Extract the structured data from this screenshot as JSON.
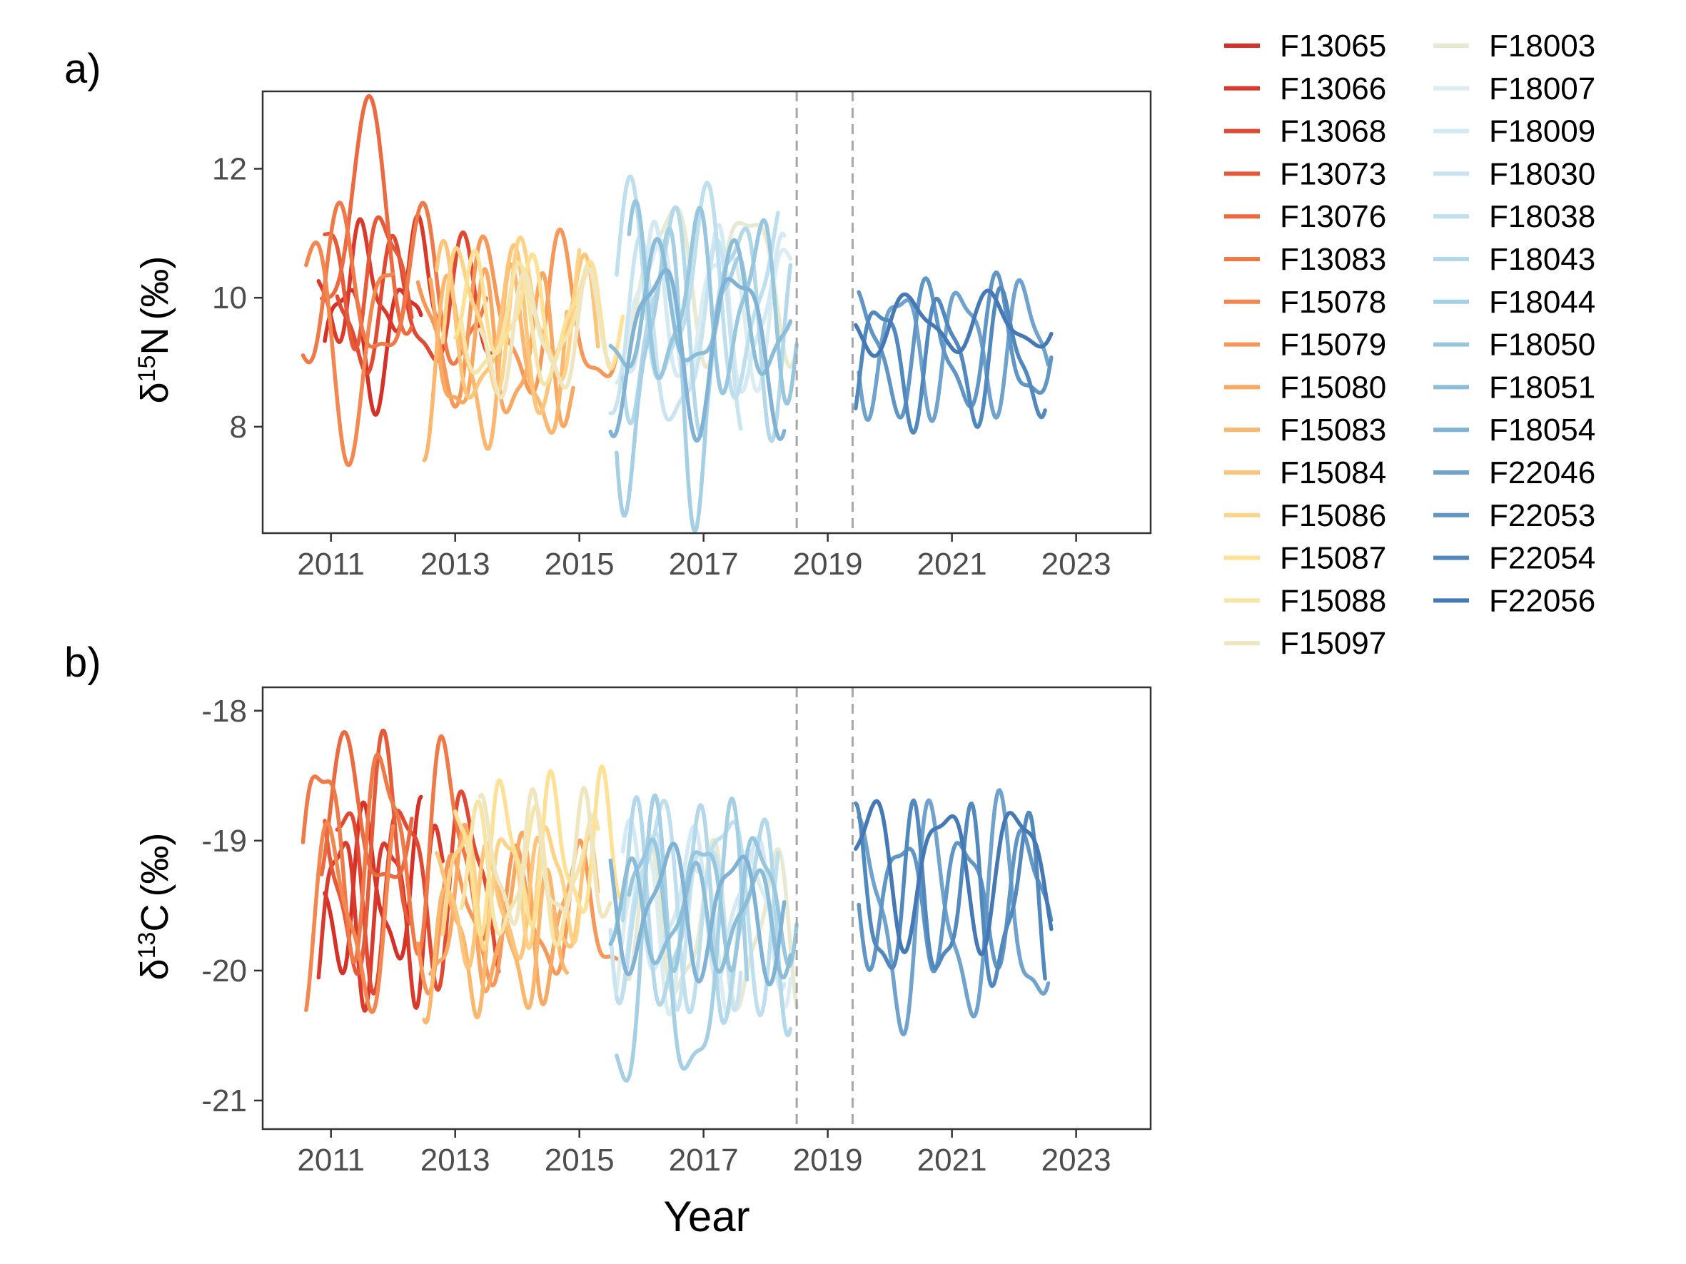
{
  "chart_data": [
    {
      "panel_label": "a)",
      "type": "line",
      "ylabel": {
        "symbol": "δ",
        "superscript": "15",
        "element": "N",
        "unit": "(‰)"
      },
      "xlabel": "",
      "xlim": [
        2009.9,
        2024.2
      ],
      "ylim": [
        6.35,
        13.2
      ],
      "xticks": [
        2011,
        2013,
        2015,
        2017,
        2019,
        2021,
        2023
      ],
      "yticks": [
        8,
        10,
        12
      ],
      "vlines": [
        2018.5,
        2019.4
      ],
      "grid": false,
      "legend_position": "right"
    },
    {
      "panel_label": "b)",
      "type": "line",
      "ylabel": {
        "symbol": "δ",
        "superscript": "13",
        "element": "C",
        "unit": "(‰)"
      },
      "xlabel": "Year",
      "xlim": [
        2009.9,
        2024.2
      ],
      "ylim": [
        -21.22,
        -17.82
      ],
      "xticks": [
        2011,
        2013,
        2015,
        2017,
        2019,
        2021,
        2023
      ],
      "yticks": [
        -21,
        -20,
        -19,
        -18
      ],
      "vlines": [
        2018.5,
        2019.4
      ],
      "grid": false,
      "legend_position": "right"
    }
  ],
  "series": [
    {
      "name": "F13065",
      "color": "#d73027",
      "start": 2010.9,
      "end": 2012.45,
      "n_base": 9.4,
      "n_amp": 0.9,
      "n_per": 1.0,
      "n_phase": 0.2,
      "c_base": -19.4,
      "c_amp": 0.55,
      "c_per": 0.9,
      "c_phase": 1.1
    },
    {
      "name": "F13066",
      "color": "#da3a2b",
      "start": 2010.8,
      "end": 2012.8,
      "n_base": 10.2,
      "n_amp": 0.8,
      "n_per": 0.9,
      "n_phase": 1.5,
      "c_base": -19.5,
      "c_amp": 0.6,
      "c_per": 0.8,
      "c_phase": 2.0
    },
    {
      "name": "F13068",
      "color": "#e04a32",
      "start": 2011.1,
      "end": 2013.7,
      "n_base": 9.8,
      "n_amp": 0.9,
      "n_per": 1.1,
      "n_phase": 0.8,
      "c_base": -19.3,
      "c_amp": 0.65,
      "c_per": 1.0,
      "c_phase": 0.4
    },
    {
      "name": "F13073",
      "color": "#e65a3a",
      "start": 2010.9,
      "end": 2012.3,
      "n_base": 10.4,
      "n_amp": 0.9,
      "n_per": 1.0,
      "n_phase": 2.4,
      "c_base": -19.2,
      "c_amp": 0.8,
      "c_per": 1.1,
      "c_phase": 1.7
    },
    {
      "name": "F13076",
      "color": "#ec6a40",
      "start": 2010.85,
      "end": 2012.3,
      "n_base": 11.0,
      "n_amp": 1.6,
      "n_per": 1.6,
      "n_phase": 0.1,
      "c_base": -18.9,
      "c_amp": 0.55,
      "c_per": 1.3,
      "c_phase": 0.9
    },
    {
      "name": "F13083",
      "color": "#f07948",
      "start": 2010.55,
      "end": 2013.5,
      "n_base": 10.0,
      "n_amp": 1.1,
      "n_per": 1.3,
      "n_phase": 1.3,
      "c_base": -19.0,
      "c_amp": 0.7,
      "c_per": 1.0,
      "c_phase": 2.5
    },
    {
      "name": "F15078",
      "color": "#f4874f",
      "start": 2010.6,
      "end": 2012.0,
      "n_base": 9.4,
      "n_amp": 1.5,
      "n_per": 1.4,
      "n_phase": 0.6,
      "c_base": -19.6,
      "c_amp": 0.65,
      "c_per": 1.1,
      "c_phase": 0.3
    },
    {
      "name": "F15079",
      "color": "#f79858",
      "start": 2012.4,
      "end": 2015.6,
      "n_base": 9.6,
      "n_amp": 1.1,
      "n_per": 1.2,
      "n_phase": 2.0,
      "c_base": -19.6,
      "c_amp": 0.45,
      "c_per": 1.0,
      "c_phase": 1.4
    },
    {
      "name": "F15080",
      "color": "#f9a862",
      "start": 2012.6,
      "end": 2014.9,
      "n_base": 9.1,
      "n_amp": 1.0,
      "n_per": 0.9,
      "n_phase": 0.4,
      "c_base": -19.6,
      "c_amp": 0.55,
      "c_per": 0.9,
      "c_phase": 2.8
    },
    {
      "name": "F15083",
      "color": "#fbb76d",
      "start": 2012.5,
      "end": 2014.8,
      "n_base": 9.0,
      "n_amp": 1.2,
      "n_per": 1.0,
      "n_phase": 1.9,
      "c_base": -19.8,
      "c_amp": 0.45,
      "c_per": 0.8,
      "c_phase": 0.7
    },
    {
      "name": "F15084",
      "color": "#fdc57a",
      "start": 2012.7,
      "end": 2015.3,
      "n_base": 9.4,
      "n_amp": 1.1,
      "n_per": 1.1,
      "n_phase": 2.7,
      "c_base": -19.5,
      "c_amp": 0.4,
      "c_per": 0.8,
      "c_phase": 1.9
    },
    {
      "name": "F15086",
      "color": "#fed387",
      "start": 2012.8,
      "end": 2015.0,
      "n_base": 9.7,
      "n_amp": 1.0,
      "n_per": 1.0,
      "n_phase": 0.9,
      "c_base": -19.3,
      "c_amp": 0.4,
      "c_per": 0.7,
      "c_phase": 2.3
    },
    {
      "name": "F15087",
      "color": "#fee194",
      "start": 2013.0,
      "end": 2015.7,
      "n_base": 9.8,
      "n_amp": 0.7,
      "n_per": 0.9,
      "n_phase": 1.6,
      "c_base": -19.1,
      "c_amp": 0.5,
      "c_per": 0.8,
      "c_phase": 0.2
    },
    {
      "name": "F15088",
      "color": "#f7e4a7",
      "start": 2013.1,
      "end": 2015.3,
      "n_base": 9.5,
      "n_amp": 0.8,
      "n_per": 1.1,
      "n_phase": 2.2,
      "c_base": -19.3,
      "c_amp": 0.45,
      "c_per": 0.9,
      "c_phase": 1.2
    },
    {
      "name": "F15097",
      "color": "#efe6c0",
      "start": 2013.4,
      "end": 2015.5,
      "n_base": 9.4,
      "n_amp": 0.8,
      "n_per": 1.0,
      "n_phase": 0.5,
      "c_base": -19.2,
      "c_amp": 0.45,
      "c_per": 0.8,
      "c_phase": 2.6
    },
    {
      "name": "F18003",
      "color": "#e6ead2",
      "start": 2015.8,
      "end": 2018.5,
      "n_base": 10.4,
      "n_amp": 1.1,
      "n_per": 1.3,
      "n_phase": 1.0,
      "c_base": -19.7,
      "c_amp": 0.55,
      "c_per": 1.0,
      "c_phase": 0.8
    },
    {
      "name": "F18007",
      "color": "#dcedf2",
      "start": 2015.6,
      "end": 2018.4,
      "n_base": 9.9,
      "n_amp": 1.0,
      "n_per": 1.1,
      "n_phase": 2.1,
      "c_base": -19.6,
      "c_amp": 0.55,
      "c_per": 0.9,
      "c_phase": 1.5
    },
    {
      "name": "F18009",
      "color": "#d3e9f3",
      "start": 2015.7,
      "end": 2018.3,
      "n_base": 9.7,
      "n_amp": 1.1,
      "n_per": 1.0,
      "n_phase": 0.3,
      "c_base": -19.5,
      "c_amp": 0.5,
      "c_per": 1.0,
      "c_phase": 2.9
    },
    {
      "name": "F18030",
      "color": "#c9e4f0",
      "start": 2015.5,
      "end": 2017.6,
      "n_base": 9.2,
      "n_amp": 1.3,
      "n_per": 1.2,
      "n_phase": 1.7,
      "c_base": -19.5,
      "c_amp": 0.6,
      "c_per": 0.9,
      "c_phase": 0.6
    },
    {
      "name": "F18038",
      "color": "#bedfee",
      "start": 2015.6,
      "end": 2018.2,
      "n_base": 10.0,
      "n_amp": 1.4,
      "n_per": 1.2,
      "n_phase": 2.6,
      "c_base": -19.4,
      "c_amp": 0.7,
      "c_per": 1.1,
      "c_phase": 1.8
    },
    {
      "name": "F18043",
      "color": "#b2d8ea",
      "start": 2015.7,
      "end": 2018.4,
      "n_base": 9.8,
      "n_amp": 1.5,
      "n_per": 1.1,
      "n_phase": 0.7,
      "c_base": -19.6,
      "c_amp": 0.7,
      "c_per": 1.0,
      "c_phase": 2.2
    },
    {
      "name": "F18044",
      "color": "#a4cfe5",
      "start": 2015.6,
      "end": 2017.7,
      "n_base": 9.0,
      "n_amp": 2.0,
      "n_per": 1.1,
      "n_phase": 1.3,
      "c_base": -20.0,
      "c_amp": 1.0,
      "c_per": 1.2,
      "c_phase": 0.4
    },
    {
      "name": "F18050",
      "color": "#97c6df",
      "start": 2015.8,
      "end": 2018.5,
      "n_base": 9.9,
      "n_amp": 1.2,
      "n_per": 1.0,
      "n_phase": 2.3,
      "c_base": -19.4,
      "c_amp": 0.45,
      "c_per": 0.9,
      "c_phase": 1.0
    },
    {
      "name": "F18051",
      "color": "#8bbdd9",
      "start": 2015.5,
      "end": 2018.4,
      "n_base": 9.7,
      "n_amp": 0.9,
      "n_per": 1.2,
      "n_phase": 0.2,
      "c_base": -19.6,
      "c_amp": 0.35,
      "c_per": 1.0,
      "c_phase": 2.7
    },
    {
      "name": "F18054",
      "color": "#7fb2d4",
      "start": 2015.5,
      "end": 2018.3,
      "n_base": 9.4,
      "n_amp": 1.2,
      "n_per": 1.3,
      "n_phase": 1.8,
      "c_base": -19.5,
      "c_amp": 0.45,
      "c_per": 1.1,
      "c_phase": 0.9
    },
    {
      "name": "F22046",
      "color": "#6fa3cd",
      "start": 2019.5,
      "end": 2022.55,
      "n_base": 9.3,
      "n_amp": 0.9,
      "n_per": 1.0,
      "n_phase": 0.5,
      "c_base": -19.6,
      "c_amp": 0.75,
      "c_per": 1.1,
      "c_phase": 1.6
    },
    {
      "name": "F22053",
      "color": "#6096c6",
      "start": 2019.5,
      "end": 2022.6,
      "n_base": 9.2,
      "n_amp": 0.9,
      "n_per": 1.1,
      "n_phase": 1.9,
      "c_base": -19.4,
      "c_amp": 0.45,
      "c_per": 1.0,
      "c_phase": 0.3
    },
    {
      "name": "F22054",
      "color": "#5189bf",
      "start": 2019.45,
      "end": 2022.5,
      "n_base": 9.1,
      "n_amp": 0.9,
      "n_per": 1.0,
      "n_phase": 2.5,
      "c_base": -19.5,
      "c_amp": 0.6,
      "c_per": 0.9,
      "c_phase": 2.4
    },
    {
      "name": "F22056",
      "color": "#4479b6",
      "start": 2019.45,
      "end": 2022.6,
      "n_base": 9.6,
      "n_amp": 0.4,
      "n_per": 1.3,
      "n_phase": 0.9,
      "c_base": -19.2,
      "c_amp": 0.5,
      "c_per": 1.2,
      "c_phase": 1.2
    }
  ]
}
